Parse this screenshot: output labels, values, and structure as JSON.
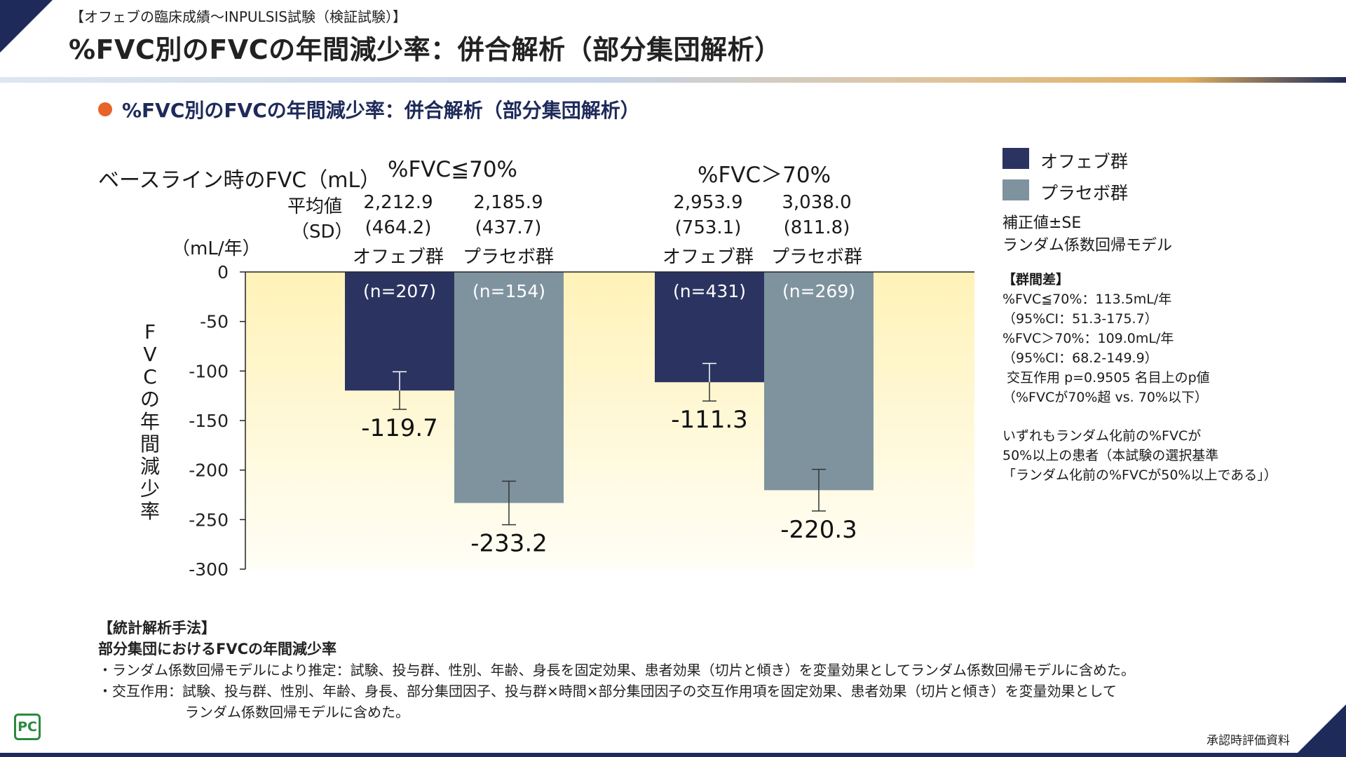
{
  "header": {
    "subtitle": "【オフェブの臨床成績〜INPULSIS試験（検証試験）】",
    "title": "%FVC別のFVCの年間減少率：併合解析（部分集団解析）"
  },
  "section_title": "%FVC別のFVCの年間減少率：併合解析（部分集団解析）",
  "baseline": {
    "label": "ベースライン時のFVC（mL）",
    "mean_label": "平均値",
    "sd_label": "（SD）",
    "groups": [
      {
        "title": "%FVC≦70%",
        "cols": [
          {
            "mean": "2,212.9",
            "sd": "(464.2)",
            "arm": "オフェブ群"
          },
          {
            "mean": "2,185.9",
            "sd": "(437.7)",
            "arm": "プラセボ群"
          }
        ]
      },
      {
        "title": "%FVC＞70%",
        "cols": [
          {
            "mean": "2,953.9",
            "sd": "(753.1)",
            "arm": "オフェブ群"
          },
          {
            "mean": "3,038.0",
            "sd": "(811.8)",
            "arm": "プラセボ群"
          }
        ]
      }
    ]
  },
  "unit_label": "（mL/年）",
  "ylabel_chars": [
    "F",
    "V",
    "C",
    "の",
    "年",
    "間",
    "減",
    "少",
    "率"
  ],
  "legend": {
    "items": [
      {
        "label": "オフェブ群",
        "color": "#2b3461"
      },
      {
        "label": "プラセボ群",
        "color": "#7f939f"
      }
    ],
    "note1": "補正値±SE",
    "note2": "ランダム係数回帰モデル"
  },
  "side_notes": {
    "diff_title": "【群間差】",
    "lines": [
      "%FVC≦70%：113.5mL/年",
      "（95%CI：51.3-175.7）",
      "%FVC＞70%：109.0mL/年",
      "（95%CI：68.2-149.9）",
      " 交互作用 p=0.9505 名目上のp値",
      "（%FVCが70%超 vs. 70%以下）"
    ],
    "population": [
      "いずれもランダム化前の%FVCが",
      "50%以上の患者（本試験の選択基準",
      "「ランダム化前の%FVCが50%以上である」）"
    ]
  },
  "chart_data": {
    "type": "bar",
    "title": "%FVC別のFVCの年間減少率：併合解析（部分集団解析）",
    "ylabel": "FVCの年間減少率",
    "yunit": "（mL/年）",
    "ylim": [
      -300,
      0
    ],
    "yticks": [
      0,
      -50,
      -100,
      -150,
      -200,
      -250,
      -300
    ],
    "ytick_labels": [
      "0",
      "-50",
      "-100",
      "-150",
      "-200",
      "-250",
      "-300"
    ],
    "categories": [
      "%FVC≦70%",
      "%FVC＞70%"
    ],
    "series": [
      {
        "name": "オフェブ群",
        "color": "#2b3461",
        "values": [
          -119.7,
          -111.3
        ],
        "se": [
          19,
          19
        ],
        "n": [
          "(n=207)",
          "(n=431)"
        ],
        "labels": [
          "-119.7",
          "-111.3"
        ]
      },
      {
        "name": "プラセボ群",
        "color": "#7f939f",
        "values": [
          -233.2,
          -220.3
        ],
        "se": [
          22,
          21
        ],
        "n": [
          "(n=154)",
          "(n=269)"
        ],
        "labels": [
          "-233.2",
          "-220.3"
        ]
      }
    ],
    "error_bar": "補正値±SE"
  },
  "footnotes": {
    "title": "【統計解析手法】",
    "subtitle": "部分集団におけるFVCの年間減少率",
    "line1": "・ランダム係数回帰モデルにより推定：試験、投与群、性別、年齢、身長を固定効果、患者効果（切片と傾き）を変量効果としてランダム係数回帰モデルに含めた。",
    "line2": "・交互作用：試験、投与群、性別、年齢、身長、部分集団因子、投与群×時間×部分集団因子の交互作用項を固定効果、患者効果（切片と傾き）を変量効果として",
    "line3": "ランダム係数回帰モデルに含めた。"
  },
  "logo_text": "PC",
  "approval": "承認時評価資料"
}
